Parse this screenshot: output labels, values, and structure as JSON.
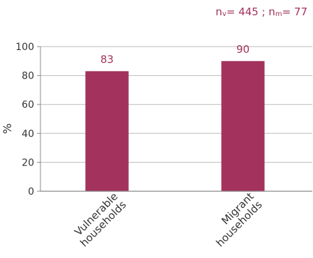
{
  "annotation": {
    "nv_prefix": "n",
    "nv_sub": "v",
    "nv_value": "= 445",
    "separator": " ; ",
    "nm_prefix": "n",
    "nm_sub": "m",
    "nm_value": "= 77"
  },
  "chart_data": {
    "type": "bar",
    "categories": [
      "Vulnerable households",
      "Migrant households"
    ],
    "category_lines": [
      [
        "Vulnerable",
        "households"
      ],
      [
        "Migrant",
        "households"
      ]
    ],
    "values": [
      83,
      90
    ],
    "value_labels": [
      "83",
      "90"
    ],
    "ylabel": "%",
    "ylim": [
      0,
      100
    ],
    "yticks": [
      0,
      20,
      40,
      60,
      80,
      100
    ],
    "grid": true,
    "bar_color": "#a3325c",
    "label_color": "#a3325c",
    "axis_color": "#888888",
    "grid_color": "#bbbbbb"
  }
}
